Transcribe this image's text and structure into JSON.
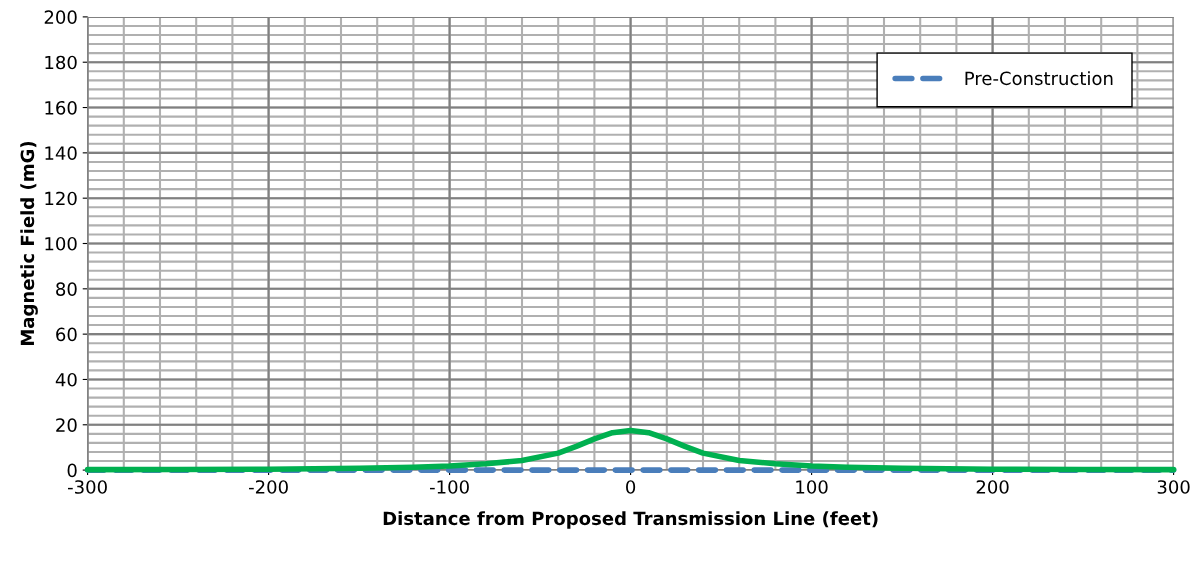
{
  "chart_data": {
    "type": "line",
    "xlabel": "Distance from Proposed Transmission Line (feet)",
    "ylabel": "Magnetic Field (mG)",
    "xlim": [
      -300,
      300
    ],
    "xticks": [
      -300,
      -200,
      -100,
      0,
      100,
      200,
      300
    ],
    "ylim": [
      0,
      200
    ],
    "yticks": [
      0,
      20,
      40,
      60,
      80,
      100,
      120,
      140,
      160,
      180,
      200
    ],
    "grid": true,
    "legend": "top right",
    "marker": "none",
    "series": [
      {
        "name": "Pre-Construction",
        "color": "#4a7ebb",
        "line_style": "dashed",
        "x": [
          -300,
          -200,
          -100,
          0,
          100,
          200,
          300
        ],
        "values": [
          0,
          0,
          0,
          0,
          0,
          0,
          0
        ]
      },
      {
        "color": "#00b050",
        "line_style": "solid",
        "x": [
          -300,
          -250,
          -200,
          -150,
          -120,
          -100,
          -80,
          -60,
          -40,
          -30,
          -20,
          -10,
          0,
          10,
          20,
          30,
          40,
          60,
          80,
          100,
          120,
          150,
          200,
          250,
          300
        ],
        "values": [
          0.2,
          0.3,
          0.4,
          0.8,
          1.3,
          1.8,
          2.8,
          4.2,
          7.5,
          10.5,
          13.8,
          16.5,
          17.5,
          16.5,
          13.8,
          10.5,
          7.5,
          4.2,
          2.8,
          1.8,
          1.3,
          0.8,
          0.4,
          0.3,
          0.2
        ]
      }
    ]
  }
}
